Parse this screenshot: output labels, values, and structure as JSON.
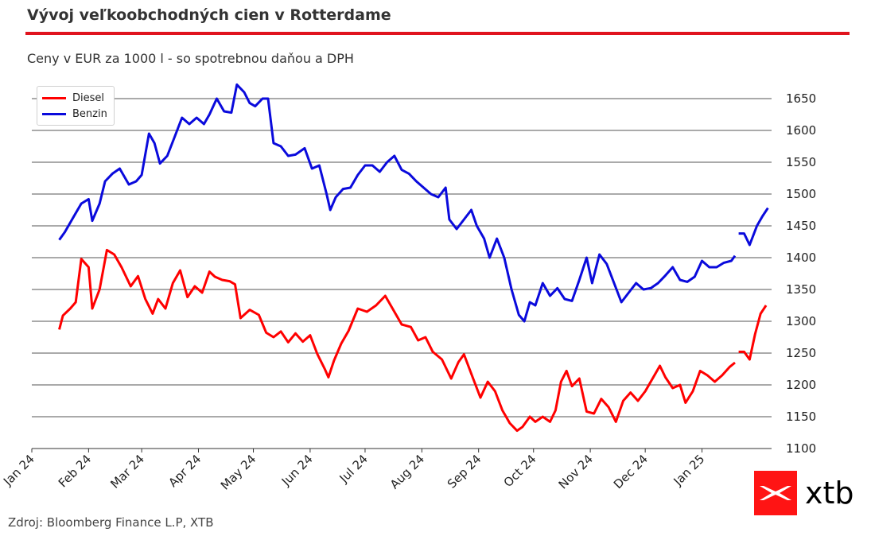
{
  "header": {
    "title": "Vývoj veľkoobchodných cien v Rotterdame",
    "subtitle": "Ceny v EUR za 1000 l - so spotrebnou daňou a DPH"
  },
  "footer": {
    "source": "Zdroj: Bloomberg Finance L.P, XTB"
  },
  "logo": {
    "text": "xtb",
    "color": "#ff1414"
  },
  "colors": {
    "accent": "#e0141e",
    "diesel": "#ff0000",
    "benzin": "#0a0adc"
  },
  "chart_data": {
    "type": "line",
    "title": "",
    "xlabel": "",
    "ylabel": "",
    "ylim": [
      1100,
      1680
    ],
    "y_ticks": [
      1100,
      1150,
      1200,
      1250,
      1300,
      1350,
      1400,
      1450,
      1500,
      1550,
      1600,
      1650
    ],
    "x_ticks": [
      "Jan 24",
      "Feb 24",
      "Mar 24",
      "Apr 24",
      "May 24",
      "Jun 24",
      "Jul 24",
      "Aug 24",
      "Sep 24",
      "Oct 24",
      "Nov 24",
      "Dec 24",
      "Jan 25"
    ],
    "grid": "horizontal",
    "y_axis_side": "right",
    "legend_position": "top-left",
    "series": [
      {
        "name": "Diesel",
        "color": "#ff0000",
        "points": [
          [
            "2024-01-16",
            1287
          ],
          [
            "2024-01-18",
            1309
          ],
          [
            "2024-01-22",
            1320
          ],
          [
            "2024-01-25",
            1330
          ],
          [
            "2024-01-28",
            1398
          ],
          [
            "2024-02-01",
            1385
          ],
          [
            "2024-02-03",
            1320
          ],
          [
            "2024-02-07",
            1350
          ],
          [
            "2024-02-11",
            1412
          ],
          [
            "2024-02-15",
            1405
          ],
          [
            "2024-02-19",
            1385
          ],
          [
            "2024-02-24",
            1355
          ],
          [
            "2024-02-28",
            1371
          ],
          [
            "2024-03-03",
            1335
          ],
          [
            "2024-03-07",
            1312
          ],
          [
            "2024-03-10",
            1335
          ],
          [
            "2024-03-14",
            1320
          ],
          [
            "2024-03-18",
            1360
          ],
          [
            "2024-03-22",
            1380
          ],
          [
            "2024-03-26",
            1338
          ],
          [
            "2024-03-30",
            1355
          ],
          [
            "2024-04-03",
            1345
          ],
          [
            "2024-04-07",
            1378
          ],
          [
            "2024-04-10",
            1370
          ],
          [
            "2024-04-14",
            1365
          ],
          [
            "2024-04-18",
            1363
          ],
          [
            "2024-04-21",
            1358
          ],
          [
            "2024-04-24",
            1305
          ],
          [
            "2024-04-29",
            1318
          ],
          [
            "2024-05-04",
            1310
          ],
          [
            "2024-05-08",
            1282
          ],
          [
            "2024-05-12",
            1275
          ],
          [
            "2024-05-16",
            1284
          ],
          [
            "2024-05-20",
            1267
          ],
          [
            "2024-05-24",
            1281
          ],
          [
            "2024-05-28",
            1268
          ],
          [
            "2024-06-01",
            1278
          ],
          [
            "2024-06-05",
            1248
          ],
          [
            "2024-06-09",
            1225
          ],
          [
            "2024-06-11",
            1212
          ],
          [
            "2024-06-14",
            1238
          ],
          [
            "2024-06-18",
            1265
          ],
          [
            "2024-06-22",
            1285
          ],
          [
            "2024-06-27",
            1320
          ],
          [
            "2024-07-02",
            1315
          ],
          [
            "2024-07-07",
            1325
          ],
          [
            "2024-07-12",
            1340
          ],
          [
            "2024-07-17",
            1315
          ],
          [
            "2024-07-21",
            1295
          ],
          [
            "2024-07-26",
            1291
          ],
          [
            "2024-07-30",
            1270
          ],
          [
            "2024-08-03",
            1275
          ],
          [
            "2024-08-07",
            1252
          ],
          [
            "2024-08-12",
            1240
          ],
          [
            "2024-08-17",
            1210
          ],
          [
            "2024-08-21",
            1236
          ],
          [
            "2024-08-24",
            1248
          ],
          [
            "2024-08-29",
            1210
          ],
          [
            "2024-09-02",
            1180
          ],
          [
            "2024-09-06",
            1205
          ],
          [
            "2024-09-10",
            1190
          ],
          [
            "2024-09-14",
            1160
          ],
          [
            "2024-09-18",
            1140
          ],
          [
            "2024-09-22",
            1128
          ],
          [
            "2024-09-25",
            1134
          ],
          [
            "2024-09-29",
            1150
          ],
          [
            "2024-10-02",
            1142
          ],
          [
            "2024-10-06",
            1150
          ],
          [
            "2024-10-10",
            1142
          ],
          [
            "2024-10-13",
            1160
          ],
          [
            "2024-10-16",
            1205
          ],
          [
            "2024-10-19",
            1222
          ],
          [
            "2024-10-22",
            1198
          ],
          [
            "2024-10-26",
            1210
          ],
          [
            "2024-10-30",
            1158
          ],
          [
            "2024-11-03",
            1155
          ],
          [
            "2024-11-07",
            1178
          ],
          [
            "2024-11-11",
            1165
          ],
          [
            "2024-11-15",
            1142
          ],
          [
            "2024-11-19",
            1175
          ],
          [
            "2024-11-23",
            1188
          ],
          [
            "2024-11-27",
            1175
          ],
          [
            "2024-12-01",
            1190
          ],
          [
            "2024-12-06",
            1215
          ],
          [
            "2024-12-09",
            1230
          ],
          [
            "2024-12-12",
            1212
          ],
          [
            "2024-12-16",
            1195
          ],
          [
            "2024-12-20",
            1200
          ],
          [
            "2024-12-23",
            1172
          ],
          [
            "2024-12-27",
            1190
          ],
          [
            "2024-12-31",
            1222
          ],
          [
            "2025-01-04",
            1215
          ],
          [
            "2025-01-08",
            1205
          ],
          [
            "2025-01-12",
            1215
          ],
          [
            "2025-01-16",
            1228
          ],
          [
            "2025-01-19",
            1235
          ],
          null,
          [
            "2025-01-21",
            1252
          ],
          [
            "2025-01-24",
            1252
          ],
          [
            "2025-01-27",
            1240
          ],
          [
            "2025-01-30",
            1280
          ],
          [
            "2025-02-02",
            1312
          ],
          [
            "2025-02-05",
            1325
          ]
        ]
      },
      {
        "name": "Benzin",
        "color": "#0a0adc",
        "points": [
          [
            "2024-01-16",
            1428
          ],
          [
            "2024-01-19",
            1440
          ],
          [
            "2024-01-24",
            1465
          ],
          [
            "2024-01-28",
            1485
          ],
          [
            "2024-02-01",
            1492
          ],
          [
            "2024-02-03",
            1458
          ],
          [
            "2024-02-07",
            1485
          ],
          [
            "2024-02-10",
            1520
          ],
          [
            "2024-02-14",
            1532
          ],
          [
            "2024-02-18",
            1540
          ],
          [
            "2024-02-23",
            1515
          ],
          [
            "2024-02-27",
            1520
          ],
          [
            "2024-03-01",
            1530
          ],
          [
            "2024-03-05",
            1595
          ],
          [
            "2024-03-08",
            1580
          ],
          [
            "2024-03-11",
            1548
          ],
          [
            "2024-03-15",
            1560
          ],
          [
            "2024-03-19",
            1590
          ],
          [
            "2024-03-23",
            1620
          ],
          [
            "2024-03-27",
            1610
          ],
          [
            "2024-03-31",
            1620
          ],
          [
            "2024-04-04",
            1610
          ],
          [
            "2024-04-07",
            1625
          ],
          [
            "2024-04-11",
            1650
          ],
          [
            "2024-04-15",
            1630
          ],
          [
            "2024-04-19",
            1628
          ],
          [
            "2024-04-22",
            1672
          ],
          [
            "2024-04-26",
            1660
          ],
          [
            "2024-04-29",
            1643
          ],
          [
            "2024-05-02",
            1638
          ],
          [
            "2024-05-06",
            1650
          ],
          [
            "2024-05-09",
            1650
          ],
          [
            "2024-05-12",
            1580
          ],
          [
            "2024-05-16",
            1575
          ],
          [
            "2024-05-20",
            1560
          ],
          [
            "2024-05-24",
            1562
          ],
          [
            "2024-05-29",
            1572
          ],
          [
            "2024-06-02",
            1540
          ],
          [
            "2024-06-06",
            1545
          ],
          [
            "2024-06-10",
            1500
          ],
          [
            "2024-06-12",
            1475
          ],
          [
            "2024-06-15",
            1495
          ],
          [
            "2024-06-19",
            1508
          ],
          [
            "2024-06-23",
            1510
          ],
          [
            "2024-06-27",
            1530
          ],
          [
            "2024-07-01",
            1545
          ],
          [
            "2024-07-05",
            1545
          ],
          [
            "2024-07-09",
            1535
          ],
          [
            "2024-07-13",
            1550
          ],
          [
            "2024-07-17",
            1560
          ],
          [
            "2024-07-21",
            1538
          ],
          [
            "2024-07-25",
            1532
          ],
          [
            "2024-07-29",
            1520
          ],
          [
            "2024-08-02",
            1510
          ],
          [
            "2024-08-06",
            1500
          ],
          [
            "2024-08-10",
            1495
          ],
          [
            "2024-08-14",
            1510
          ],
          [
            "2024-08-16",
            1460
          ],
          [
            "2024-08-20",
            1445
          ],
          [
            "2024-08-24",
            1460
          ],
          [
            "2024-08-28",
            1475
          ],
          [
            "2024-08-31",
            1450
          ],
          [
            "2024-09-04",
            1430
          ],
          [
            "2024-09-07",
            1400
          ],
          [
            "2024-09-11",
            1430
          ],
          [
            "2024-09-15",
            1400
          ],
          [
            "2024-09-19",
            1350
          ],
          [
            "2024-09-23",
            1310
          ],
          [
            "2024-09-26",
            1300
          ],
          [
            "2024-09-29",
            1330
          ],
          [
            "2024-10-02",
            1325
          ],
          [
            "2024-10-06",
            1360
          ],
          [
            "2024-10-10",
            1340
          ],
          [
            "2024-10-14",
            1352
          ],
          [
            "2024-10-18",
            1335
          ],
          [
            "2024-10-22",
            1332
          ],
          [
            "2024-10-26",
            1365
          ],
          [
            "2024-10-30",
            1400
          ],
          [
            "2024-11-02",
            1360
          ],
          [
            "2024-11-06",
            1405
          ],
          [
            "2024-11-10",
            1390
          ],
          [
            "2024-11-14",
            1360
          ],
          [
            "2024-11-18",
            1330
          ],
          [
            "2024-11-22",
            1345
          ],
          [
            "2024-11-26",
            1360
          ],
          [
            "2024-11-30",
            1350
          ],
          [
            "2024-12-04",
            1352
          ],
          [
            "2024-12-08",
            1360
          ],
          [
            "2024-12-12",
            1372
          ],
          [
            "2024-12-16",
            1385
          ],
          [
            "2024-12-20",
            1365
          ],
          [
            "2024-12-24",
            1362
          ],
          [
            "2024-12-28",
            1370
          ],
          [
            "2025-01-01",
            1395
          ],
          [
            "2025-01-05",
            1385
          ],
          [
            "2025-01-09",
            1385
          ],
          [
            "2025-01-13",
            1392
          ],
          [
            "2025-01-17",
            1395
          ],
          [
            "2025-01-19",
            1403
          ],
          null,
          [
            "2025-01-21",
            1438
          ],
          [
            "2025-01-24",
            1438
          ],
          [
            "2025-01-27",
            1420
          ],
          [
            "2025-01-31",
            1450
          ],
          [
            "2025-02-03",
            1465
          ],
          [
            "2025-02-06",
            1478
          ]
        ]
      }
    ]
  }
}
